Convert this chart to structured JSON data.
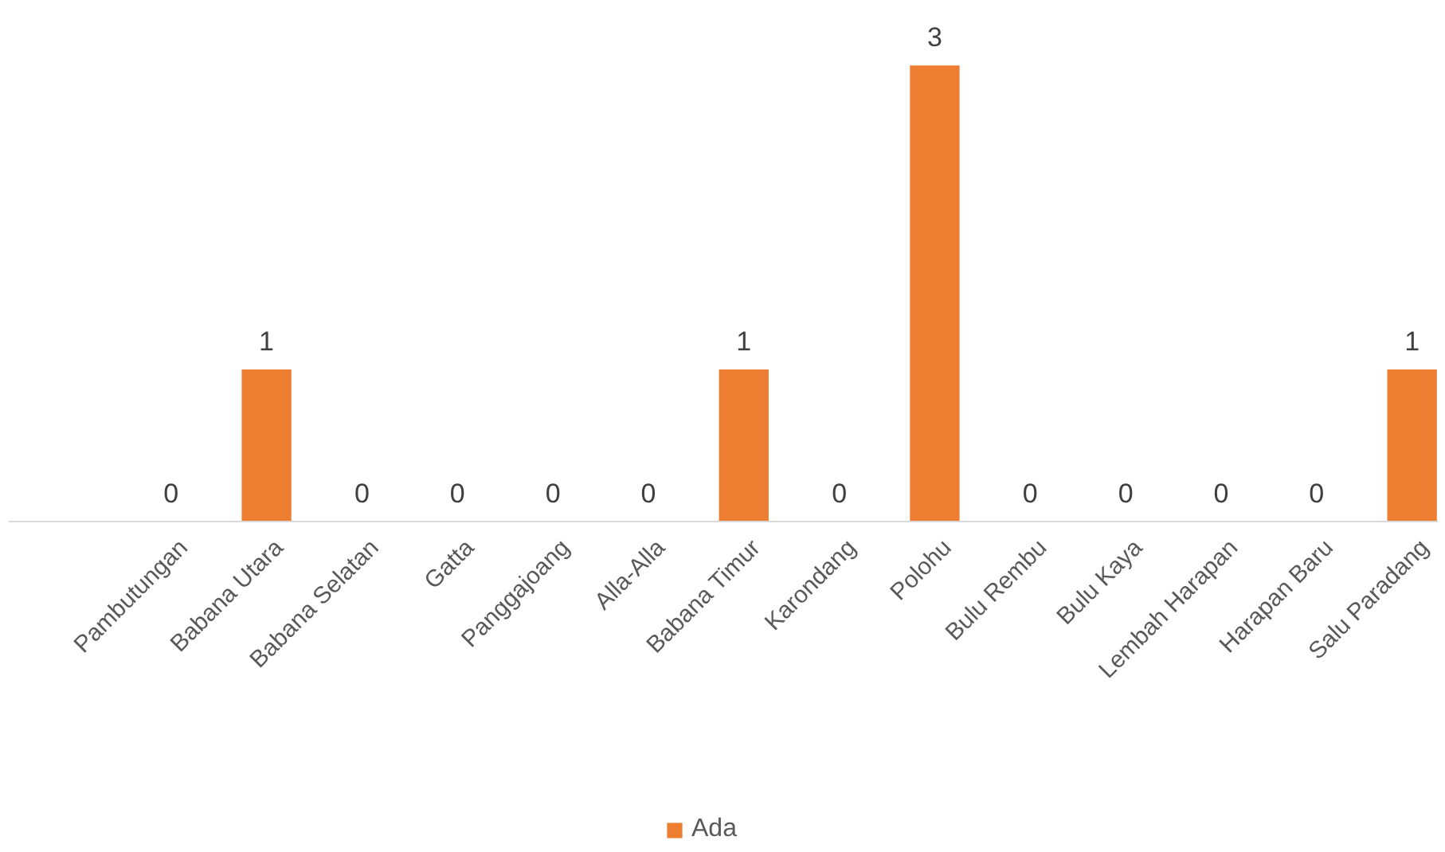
{
  "chart_data": {
    "type": "bar",
    "categories": [
      "Pambutungan",
      "Babana Utara",
      "Babana Selatan",
      "Gatta",
      "Panggajoang",
      "Alla-Alla",
      "Babana Timur",
      "Karondang",
      "Polohu",
      "Bulu Rembu",
      "Bulu Kaya",
      "Lembah Harapan",
      "Harapan Baru",
      "Salu Paradang"
    ],
    "series": [
      {
        "name": "Ada",
        "color": "#ed7d31",
        "values": [
          0,
          1,
          0,
          0,
          0,
          0,
          1,
          0,
          3,
          0,
          0,
          0,
          0,
          1
        ]
      }
    ],
    "data_labels": true,
    "legend": "bottom"
  }
}
